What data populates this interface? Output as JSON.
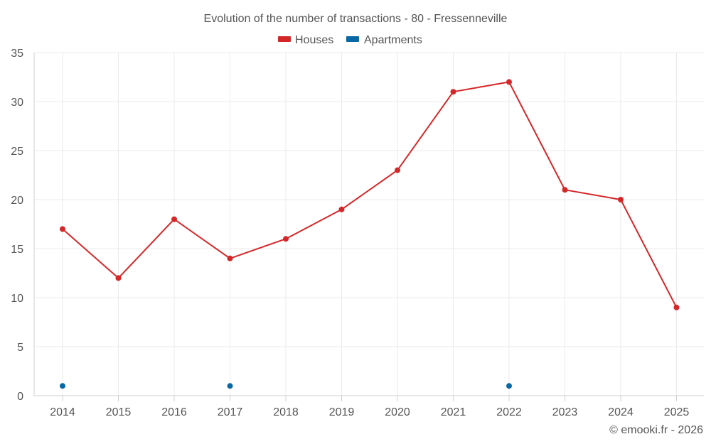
{
  "chart_data": {
    "type": "line",
    "title": "Evolution of the number of transactions - 80 - Fressenneville",
    "categories": [
      "2014",
      "2015",
      "2016",
      "2017",
      "2018",
      "2019",
      "2020",
      "2021",
      "2022",
      "2023",
      "2024",
      "2025"
    ],
    "series": [
      {
        "name": "Houses",
        "color": "#d62728",
        "style": "line-with-markers",
        "values": [
          17,
          12,
          18,
          14,
          16,
          19,
          23,
          31,
          32,
          21,
          20,
          9
        ]
      },
      {
        "name": "Apartments",
        "color": "#0868a4",
        "style": "markers",
        "values": [
          1,
          null,
          null,
          1,
          null,
          null,
          null,
          null,
          1,
          null,
          null,
          null
        ]
      }
    ],
    "ylim": [
      0,
      35
    ],
    "yticks": [
      0,
      5,
      10,
      15,
      20,
      25,
      30,
      35
    ],
    "xlabel": "",
    "ylabel": "",
    "grid": true,
    "legend_position": "top-center"
  },
  "credit": "© emooki.fr - 2026"
}
